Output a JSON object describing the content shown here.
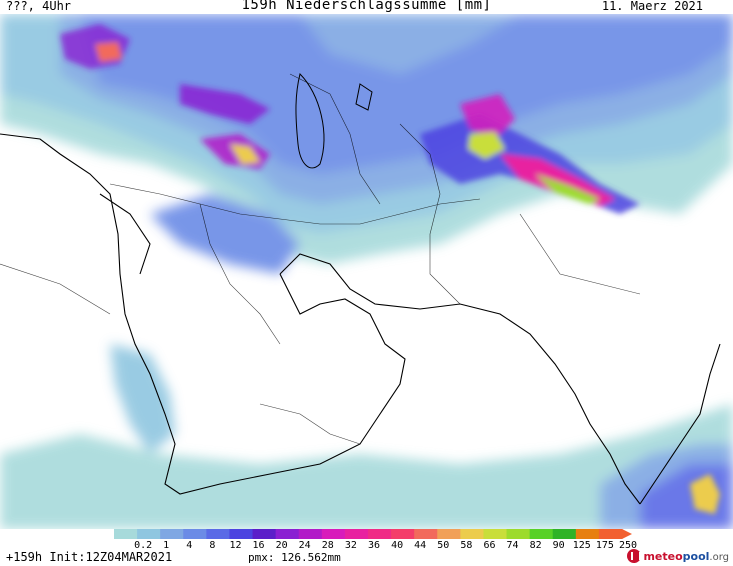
{
  "header": {
    "left": "???, 4Uhr",
    "title": "159h Niederschlagssumme [mm]",
    "right": "11. Maerz 2021"
  },
  "legend": {
    "labels": [
      "0.2",
      "1",
      "4",
      "8",
      "12",
      "16",
      "20",
      "24",
      "28",
      "32",
      "36",
      "40",
      "44",
      "50",
      "58",
      "66",
      "74",
      "82",
      "90",
      "125",
      "175",
      "250"
    ],
    "colors": [
      "#a7dadb",
      "#8fc6e0",
      "#7fa7e3",
      "#6b8be6",
      "#5a6ae6",
      "#4c43e0",
      "#5b1ec9",
      "#8a1fd2",
      "#b21ac8",
      "#d81bbb",
      "#e821a0",
      "#f02b86",
      "#f43d6a",
      "#f26a5c",
      "#f1a058",
      "#eccc4d",
      "#c9de3a",
      "#9ddb2c",
      "#58d127",
      "#2fb327",
      "#e77f10",
      "#f26030"
    ]
  },
  "footer": {
    "left": "+159h Init:12Z04MAR2021",
    "pmx": "pmx: 126.562mm",
    "brand_a": "meteo",
    "brand_b": "pool",
    "brand_c": ".org"
  }
}
